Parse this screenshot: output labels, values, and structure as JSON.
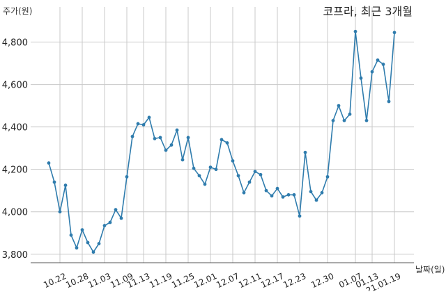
{
  "chart_data": {
    "type": "line",
    "title": "코프라, 최근 3개월",
    "xlabel": "날짜(일)",
    "ylabel": "주가(원)",
    "ylim": [
      3760,
      4900
    ],
    "yticks": [
      3800,
      4000,
      4200,
      4400,
      4600,
      4800
    ],
    "ytick_labels": [
      "3,800",
      "4,000",
      "4,200",
      "4,400",
      "4,600",
      "4,800"
    ],
    "x_tick_labels": [
      "10.22",
      "10.28",
      "11.03",
      "11.09",
      "11.13",
      "11.19",
      "11.25",
      "12.01",
      "12.07",
      "12.11",
      "12.17",
      "12.23",
      "12.30",
      "01.07",
      "01.13",
      "21.01.19"
    ],
    "x_tick_index": [
      2,
      6,
      10,
      14,
      17,
      21,
      25,
      29,
      33,
      37,
      41,
      45,
      50,
      55,
      58,
      62
    ],
    "grid": true,
    "colors": {
      "line": "#2f7cad",
      "grid": "#c8c8c8"
    },
    "series": [
      {
        "values": [
          4230,
          4140,
          4000,
          4125,
          3890,
          3830,
          3915,
          3855,
          3810,
          3850,
          3935,
          3950,
          4010,
          3970,
          4165,
          4355,
          4415,
          4410,
          4445,
          4345,
          4350,
          4290,
          4315,
          4385,
          4245,
          4350,
          4205,
          4170,
          4130,
          4210,
          4200,
          4340,
          4325,
          4240,
          4170,
          4090,
          4140,
          4190,
          4175,
          4100,
          4075,
          4110,
          4070,
          4080,
          4080,
          3980,
          4280,
          4095,
          4055,
          4090,
          4165,
          4430,
          4500,
          4430,
          4460,
          4850,
          4630,
          4430,
          4660,
          4715,
          4695,
          4520,
          4845
        ]
      }
    ]
  }
}
